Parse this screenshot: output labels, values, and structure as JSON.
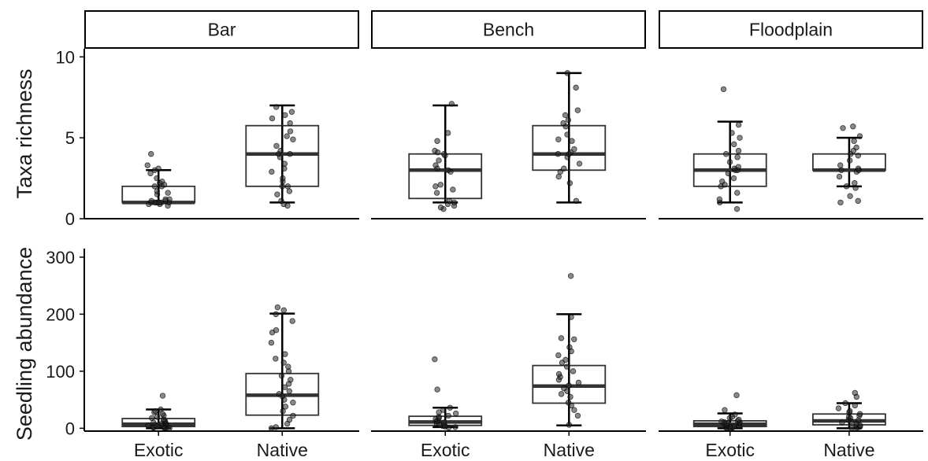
{
  "chart_data": {
    "type": "boxplot",
    "facets": [
      "Bar",
      "Bench",
      "Floodplain"
    ],
    "categories": [
      "Exotic",
      "Native"
    ],
    "rows": [
      {
        "ylabel": "Taxa richness",
        "ylim": [
          0,
          10.5
        ],
        "yticks": [
          0,
          5,
          10
        ],
        "boxes": {
          "Bar": {
            "Exotic": {
              "whisker_low": 1,
              "q1": 1,
              "median": 1,
              "q3": 2,
              "whisker_high": 3,
              "points": [
                0.8,
                0.9,
                0.9,
                1,
                1,
                1,
                1,
                1,
                1,
                1,
                1.1,
                1.1,
                1.2,
                1.2,
                1.5,
                1.6,
                1.7,
                2,
                2,
                2.1,
                2.2,
                2.3,
                2.5,
                2.8,
                3,
                3.1,
                3.3,
                4
              ]
            },
            "Native": {
              "whisker_low": 1,
              "q1": 2,
              "median": 4,
              "q3": 5.75,
              "whisker_high": 7,
              "points": [
                0.8,
                0.9,
                1.1,
                1.5,
                1.7,
                2,
                2,
                2.3,
                2.5,
                2.9,
                3.1,
                3.4,
                3.8,
                4,
                4,
                4.2,
                4.5,
                4.9,
                5.1,
                5.4,
                5.9,
                6.2,
                6.4,
                6.6,
                6.9
              ]
            }
          },
          "Bench": {
            "Exotic": {
              "whisker_low": 1,
              "q1": 1.25,
              "median": 3,
              "q3": 4,
              "whisker_high": 7,
              "points": [
                0.6,
                0.7,
                0.8,
                0.9,
                1,
                1.1,
                1.6,
                1.8,
                2,
                2.1,
                2.9,
                3,
                3.1,
                3.3,
                3.6,
                3.9,
                4,
                4.1,
                4.2,
                4.8,
                5.3,
                7.1
              ]
            },
            "Native": {
              "whisker_low": 1,
              "q1": 3,
              "median": 4,
              "q3": 5.75,
              "whisker_high": 9,
              "points": [
                1.1,
                2.2,
                2.6,
                2.9,
                3.1,
                3.4,
                3.8,
                4,
                4,
                4.1,
                4.3,
                4.8,
                4.9,
                5.2,
                5.7,
                5.9,
                6.1,
                6.4,
                6.7,
                8.1,
                9
              ]
            }
          },
          "Floodplain": {
            "Exotic": {
              "whisker_low": 1,
              "q1": 2,
              "median": 3,
              "q3": 4,
              "whisker_high": 6,
              "points": [
                0.6,
                1,
                1.2,
                1.6,
                2,
                2.1,
                2.3,
                2.5,
                2.8,
                3,
                3,
                3.1,
                3.2,
                3.5,
                3.8,
                4,
                4.2,
                4.6,
                5,
                5.3,
                5.8,
                8
              ]
            },
            "Native": {
              "whisker_low": 2,
              "q1": 3,
              "median": 3,
              "q3": 4,
              "whisker_high": 5,
              "points": [
                1,
                1.1,
                1.4,
                1.9,
                2,
                2.2,
                2.6,
                2.9,
                3,
                3,
                3.1,
                3.3,
                3.6,
                3.9,
                4,
                4.2,
                4.4,
                4.8,
                5.1,
                5.6,
                5.7
              ]
            }
          }
        }
      },
      {
        "ylabel": "Seedling abundance",
        "ylim": [
          -5,
          315
        ],
        "yticks": [
          0,
          100,
          200,
          300
        ],
        "boxes": {
          "Bar": {
            "Exotic": {
              "whisker_low": 0,
              "q1": 3,
              "median": 7,
              "q3": 17,
              "whisker_high": 33,
              "points": [
                0,
                0,
                1,
                1,
                2,
                2,
                3,
                4,
                5,
                6,
                7,
                8,
                9,
                10,
                12,
                13,
                15,
                18,
                20,
                22,
                25,
                28,
                30,
                33,
                57
              ]
            },
            "Native": {
              "whisker_low": 0,
              "q1": 23,
              "median": 58,
              "q3": 96,
              "whisker_high": 201,
              "points": [
                0,
                2,
                8,
                15,
                22,
                30,
                38,
                45,
                50,
                56,
                60,
                65,
                72,
                78,
                85,
                92,
                100,
                108,
                115,
                122,
                130,
                150,
                168,
                172,
                188,
                200,
                207,
                212
              ]
            }
          },
          "Bench": {
            "Exotic": {
              "whisker_low": 2,
              "q1": 5,
              "median": 11,
              "q3": 21,
              "whisker_high": 36,
              "points": [
                1,
                2,
                3,
                4,
                5,
                6,
                8,
                10,
                12,
                14,
                16,
                18,
                20,
                22,
                26,
                28,
                32,
                36,
                68,
                121
              ]
            },
            "Native": {
              "whisker_low": 5,
              "q1": 44,
              "median": 74,
              "q3": 110,
              "whisker_high": 200,
              "points": [
                6,
                22,
                32,
                40,
                45,
                55,
                60,
                65,
                70,
                75,
                80,
                85,
                90,
                95,
                100,
                108,
                115,
                120,
                128,
                135,
                142,
                156,
                158,
                195,
                267
              ]
            }
          },
          "Floodplain": {
            "Exotic": {
              "whisker_low": 0,
              "q1": 3,
              "median": 7,
              "q3": 13,
              "whisker_high": 26,
              "points": [
                0,
                0,
                1,
                1,
                2,
                3,
                3,
                4,
                5,
                6,
                7,
                8,
                9,
                10,
                11,
                12,
                13,
                15,
                18,
                20,
                24,
                32,
                58
              ]
            },
            "Native": {
              "whisker_low": 0,
              "q1": 6,
              "median": 13,
              "q3": 25,
              "whisker_high": 44,
              "points": [
                0,
                1,
                2,
                3,
                5,
                6,
                8,
                10,
                12,
                14,
                15,
                18,
                20,
                22,
                25,
                28,
                30,
                35,
                40,
                44,
                55,
                62
              ]
            }
          }
        }
      }
    ]
  }
}
